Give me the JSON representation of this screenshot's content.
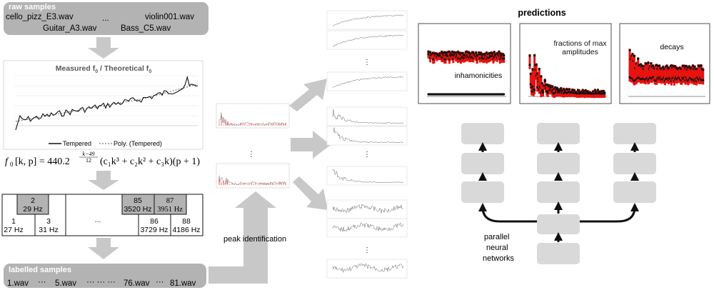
{
  "raw_samples": {
    "title": "raw samples",
    "files": [
      "cello_pizz_E3.wav",
      "Guitar_A3.wav",
      "...",
      "violin001.wav",
      "Bass_C5.wav"
    ]
  },
  "f0_chart": {
    "title": "Measured f",
    "title_sub": "0",
    "title_mid": " / Theoretical f",
    "title_sub2": "0",
    "legend": [
      "Tempered",
      "Poly. (Tempered)"
    ]
  },
  "formula": {
    "f": "f",
    "f_sub": "0",
    "args": "[k, p] = 440.2",
    "exp_top": "k−49",
    "exp_bottom": "12",
    "rest": "(c₁k³ + c₂k² + c₃k)(p + 1)"
  },
  "keyboard": {
    "keys": [
      {
        "num": "2",
        "freq": "29 Hz"
      },
      {
        "num": "85",
        "freq": "3520 Hz"
      },
      {
        "num": "87",
        "freq": "3951 Hz"
      },
      {
        "num": "1",
        "freq": "27 Hz"
      },
      {
        "num": "3",
        "freq": "31 Hz"
      },
      {
        "num": "86",
        "freq": "3729 Hz"
      },
      {
        "num": "88",
        "freq": "4186 Hz"
      }
    ],
    "ellipsis": "..."
  },
  "labelled_samples": {
    "title": "labelled samples",
    "files": [
      "1.wav",
      "···",
      "5.wav",
      "··· ··· ···",
      "76.wav",
      "···",
      "81.wav"
    ]
  },
  "peak_label": "peak identification",
  "vdots": "⋮",
  "predictions": {
    "title": "predictions",
    "labels": [
      "inhamonicities",
      "fractions of max amplitudes",
      "decays"
    ]
  },
  "network_label": [
    "parallel",
    "neural",
    "networks"
  ],
  "colors": {
    "box": "#b3b3b3",
    "arrow": "#c8c8c8",
    "red": "#e8130f",
    "dark": "#111111"
  }
}
